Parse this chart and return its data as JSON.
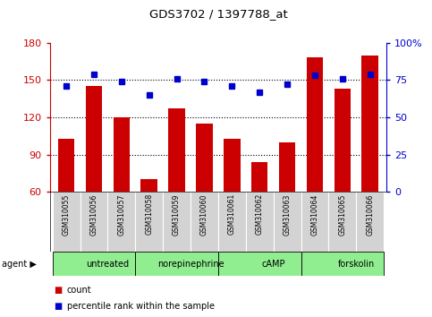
{
  "title": "GDS3702 / 1397788_at",
  "samples": [
    "GSM310055",
    "GSM310056",
    "GSM310057",
    "GSM310058",
    "GSM310059",
    "GSM310060",
    "GSM310061",
    "GSM310062",
    "GSM310063",
    "GSM310064",
    "GSM310065",
    "GSM310066"
  ],
  "counts": [
    103,
    145,
    120,
    70,
    127,
    115,
    103,
    84,
    100,
    168,
    143,
    170
  ],
  "percentile_ranks": [
    71,
    79,
    74,
    65,
    76,
    74,
    71,
    67,
    72,
    78,
    76,
    79
  ],
  "agents": [
    {
      "label": "untreated",
      "start": 0,
      "end": 3
    },
    {
      "label": "norepinephrine",
      "start": 3,
      "end": 6
    },
    {
      "label": "cAMP",
      "start": 6,
      "end": 9
    },
    {
      "label": "forskolin",
      "start": 9,
      "end": 12
    }
  ],
  "ylim_left": [
    60,
    180
  ],
  "yticks_left": [
    60,
    90,
    120,
    150,
    180
  ],
  "ylim_right": [
    0,
    100
  ],
  "yticks_right": [
    0,
    25,
    50,
    75,
    100
  ],
  "bar_color": "#cc0000",
  "dot_color": "#0000cc",
  "agent_bg": "#90EE90",
  "sample_bg": "#d3d3d3",
  "grid_color": "#000000",
  "left_axis_color": "#cc0000",
  "right_axis_color": "#0000cc",
  "legend_count_color": "#cc0000",
  "legend_pct_color": "#0000cc",
  "gridlines": [
    90,
    120,
    150
  ]
}
